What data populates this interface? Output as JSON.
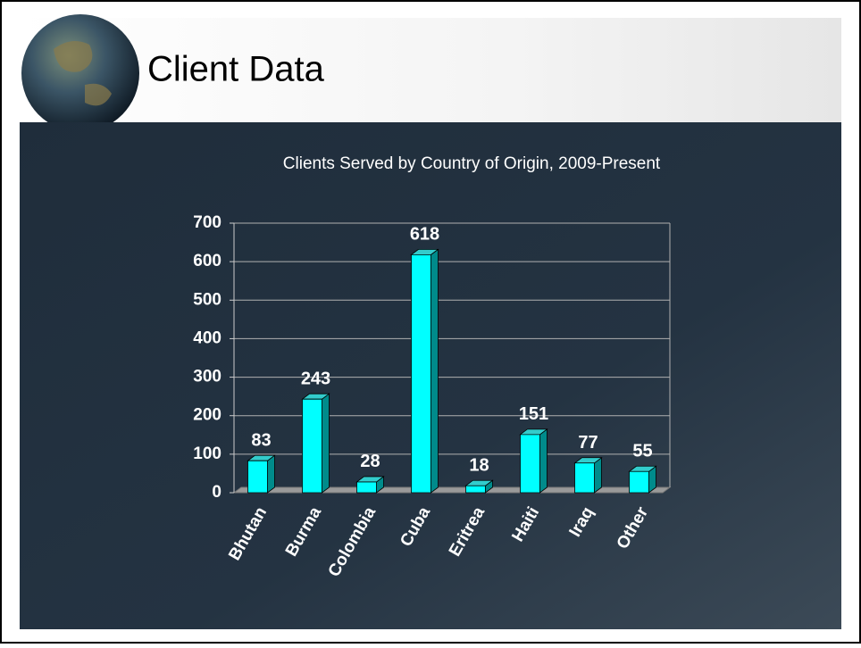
{
  "slide": {
    "title": "Client Data"
  },
  "chart_data": {
    "type": "bar",
    "title": "Clients Served by Country of Origin, 2009-Present",
    "categories": [
      "Bhutan",
      "Burma",
      "Colombia",
      "Cuba",
      "Eritrea",
      "Haiti",
      "Iraq",
      "Other"
    ],
    "values": [
      83,
      243,
      28,
      618,
      18,
      151,
      77,
      55
    ],
    "color": "#00ffff",
    "ylim": [
      0,
      700
    ],
    "yticks": [
      0,
      100,
      200,
      300,
      400,
      500,
      600,
      700
    ],
    "grid": true
  }
}
